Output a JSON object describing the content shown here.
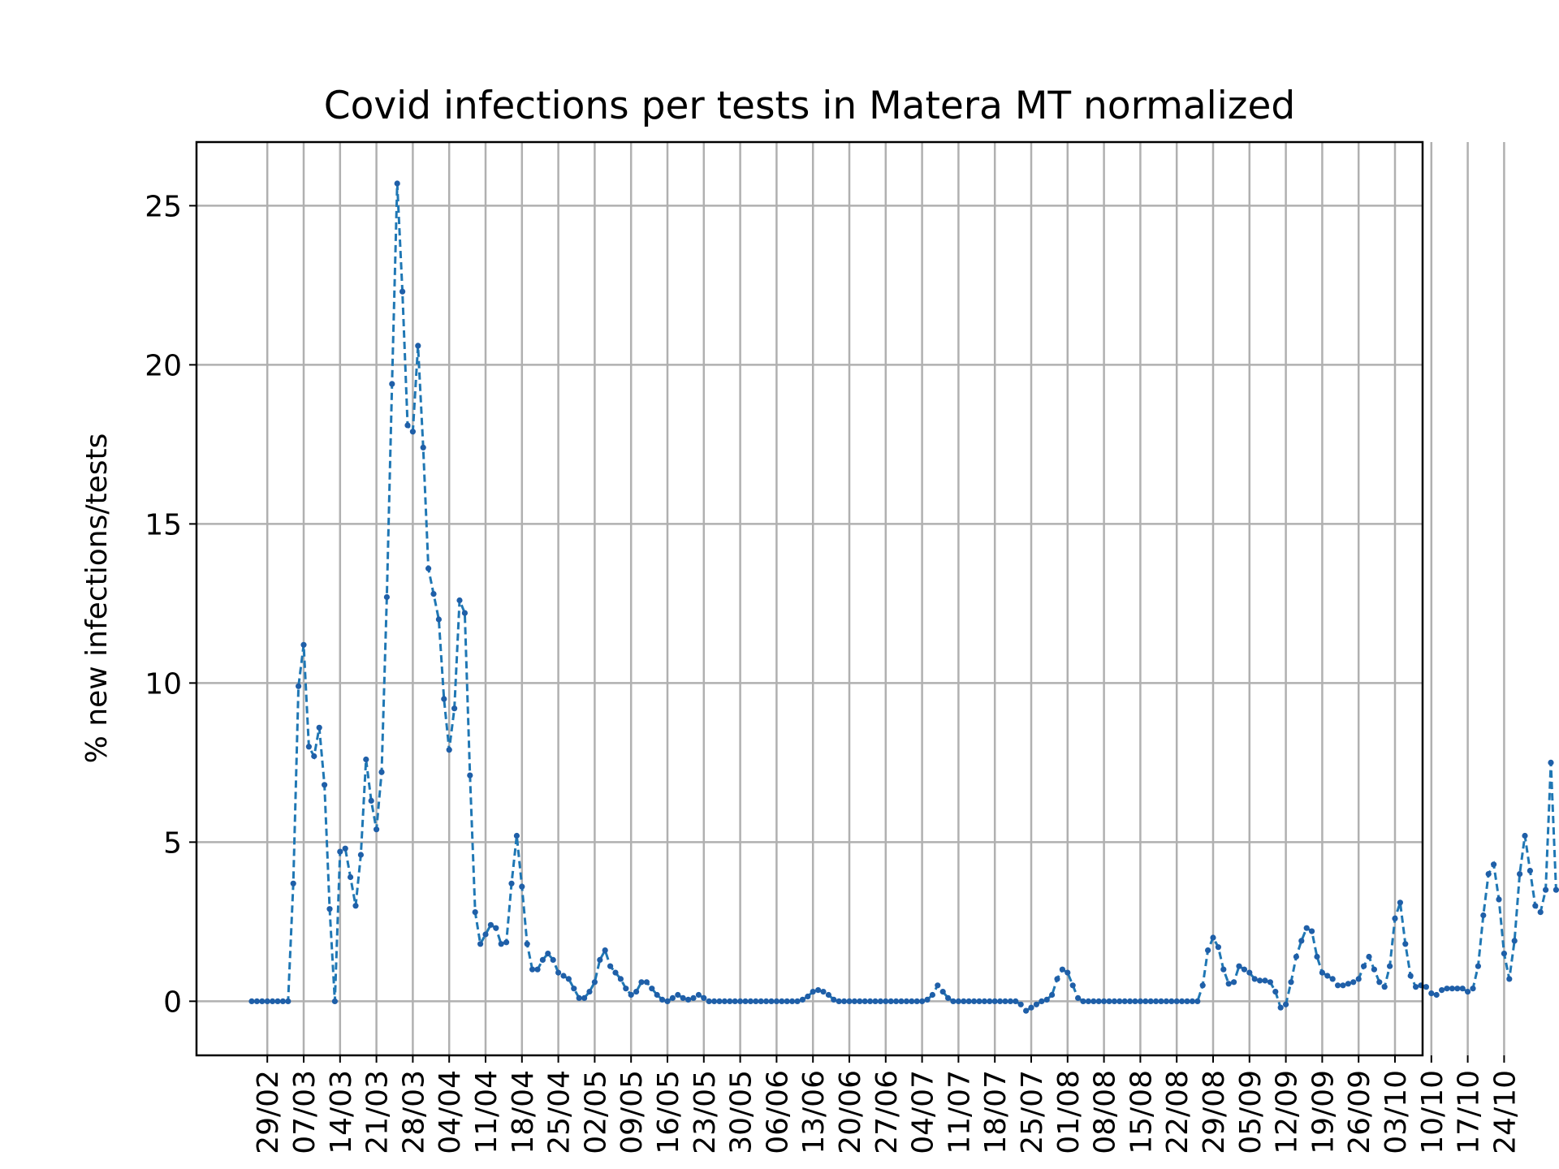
{
  "chart_data": {
    "type": "line",
    "title": "Covid infections per tests in Matera MT normalized",
    "xlabel": "",
    "ylabel": "% new infections/tests",
    "ylim": [
      -1.7,
      27
    ],
    "yticks": [
      0,
      5,
      10,
      15,
      20,
      25
    ],
    "ytick_labels": [
      "0",
      "5",
      "10",
      "15",
      "20",
      "25"
    ],
    "xtick_labels": [
      "29/02",
      "07/03",
      "14/03",
      "21/03",
      "28/03",
      "04/04",
      "11/04",
      "18/04",
      "25/04",
      "02/05",
      "09/05",
      "16/05",
      "23/05",
      "30/05",
      "06/06",
      "13/06",
      "20/06",
      "27/06",
      "04/07",
      "11/07",
      "18/07",
      "25/07",
      "01/08",
      "08/08",
      "15/08",
      "22/08",
      "29/08",
      "05/09",
      "12/09",
      "19/09",
      "26/09",
      "03/10",
      "10/10",
      "17/10",
      "24/10"
    ],
    "grid": true,
    "line_color": "#1f77b4",
    "line_style": "dashed",
    "marker_color": "#1f5fa8",
    "series": [
      {
        "x_start": "26/02",
        "values": [
          0,
          0,
          0,
          0,
          0,
          0,
          0,
          0,
          3.7,
          9.9,
          11.2,
          8.0,
          7.7,
          8.6,
          6.8,
          2.9,
          0,
          4.7,
          4.8,
          3.9,
          3.0,
          4.6,
          7.6,
          6.3,
          5.4,
          7.2,
          12.7,
          19.4,
          25.7,
          22.3,
          18.1,
          17.9,
          20.6,
          17.4,
          13.6,
          12.8,
          12.0,
          9.5,
          7.9,
          9.2,
          12.6,
          12.2,
          7.1,
          2.8,
          1.8,
          2.1,
          2.4,
          2.3,
          1.8,
          1.85,
          3.7,
          5.2,
          3.6,
          1.8,
          1.0,
          1.0,
          1.3,
          1.5,
          1.3,
          0.9,
          0.8,
          0.7,
          0.4,
          0.1,
          0.1,
          0.3,
          0.6,
          1.3,
          1.6,
          1.1,
          0.9,
          0.7,
          0.4,
          0.2,
          0.3,
          0.6,
          0.6,
          0.4,
          0.2,
          0.05,
          0,
          0.1,
          0.2,
          0.1,
          0.05,
          0.1,
          0.2,
          0.1,
          0,
          0,
          0,
          0,
          0,
          0,
          0,
          0,
          0,
          0,
          0,
          0,
          0,
          0,
          0,
          0,
          0,
          0,
          0.05,
          0.15,
          0.3,
          0.35,
          0.3,
          0.2,
          0.05,
          0,
          0,
          0,
          0,
          0,
          0,
          0,
          0,
          0,
          0,
          0,
          0,
          0,
          0,
          0,
          0,
          0,
          0.05,
          0.2,
          0.5,
          0.3,
          0.1,
          0,
          0,
          0,
          0,
          0,
          0,
          0,
          0,
          0,
          0,
          0,
          0,
          0,
          -0.1,
          -0.3,
          -0.2,
          -0.1,
          0,
          0.05,
          0.2,
          0.7,
          1.0,
          0.9,
          0.5,
          0.1,
          0,
          0,
          0,
          0,
          0,
          0,
          0,
          0,
          0,
          0,
          0,
          0,
          0,
          0,
          0,
          0,
          0,
          0,
          0,
          0,
          0,
          0,
          0,
          0.5,
          1.6,
          2.0,
          1.7,
          1.0,
          0.55,
          0.6,
          1.1,
          1.0,
          0.9,
          0.7,
          0.65,
          0.65,
          0.6,
          0.3,
          -0.2,
          -0.1,
          0.6,
          1.4,
          1.9,
          2.3,
          2.2,
          1.4,
          0.9,
          0.8,
          0.7,
          0.5,
          0.5,
          0.55,
          0.6,
          0.7,
          1.1,
          1.4,
          1.0,
          0.6,
          0.45,
          1.1,
          2.6,
          3.1,
          1.8,
          0.8,
          0.45,
          0.5,
          0.45,
          0.25,
          0.2,
          0.35,
          0.4,
          0.4,
          0.4,
          0.4,
          0.3,
          0.4,
          1.1,
          2.7,
          4.0,
          4.3,
          3.2,
          1.5,
          0.7,
          1.9,
          4.0,
          5.2,
          4.1,
          3.0,
          2.8,
          3.5,
          7.5,
          3.5
        ]
      }
    ]
  }
}
